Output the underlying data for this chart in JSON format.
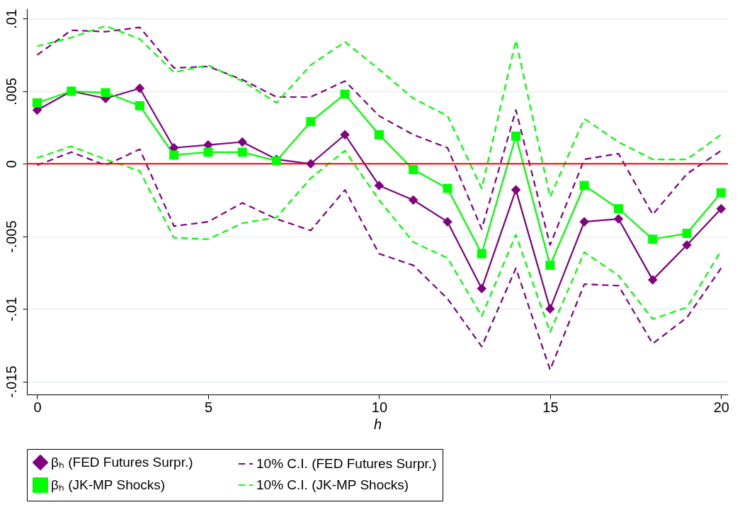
{
  "chart_data": {
    "type": "line",
    "xlabel": "h",
    "x": [
      0,
      1,
      2,
      3,
      4,
      5,
      6,
      7,
      8,
      9,
      10,
      11,
      12,
      13,
      14,
      15,
      16,
      17,
      18,
      19,
      20
    ],
    "series": [
      {
        "name": "βₕ (FED Futures Surpr.)",
        "color": "#800080",
        "marker": "diamond",
        "line_style": "solid",
        "values": [
          0.0037,
          0.005,
          0.0045,
          0.0052,
          0.0011,
          0.0013,
          0.0015,
          0.0003,
          0,
          0.002,
          -0.0015,
          -0.0025,
          -0.004,
          -0.0086,
          -0.0018,
          -0.01,
          -0.004,
          -0.0038,
          -0.008,
          -0.0056,
          -0.0031
        ]
      },
      {
        "name": "10% C.I. (FED Futures Surpr.)",
        "color": "#800080",
        "marker": "none",
        "line_style": "dashed",
        "values": [
          0.0075,
          0.0092,
          0.0091,
          0.0094,
          0.0066,
          0.0067,
          0.0058,
          0.0046,
          0.0046,
          0.0057,
          0.0033,
          0.002,
          0.0011,
          -0.0045,
          0.0037,
          -0.0056,
          0.0003,
          0.0007,
          -0.0035,
          -0.0007,
          0.0009
        ]
      },
      {
        "color": "#800080",
        "marker": "none",
        "line_style": "dashed",
        "values": [
          -0.0001,
          0.0008,
          -0.0001,
          0.001,
          -0.0043,
          -0.004,
          -0.0027,
          -0.0038,
          -0.0046,
          -0.0018,
          -0.0062,
          -0.007,
          -0.0093,
          -0.0126,
          -0.0072,
          -0.0142,
          -0.0083,
          -0.0084,
          -0.0124,
          -0.0106,
          -0.0072
        ]
      },
      {
        "name": "βₕ (JK-MP Shocks)",
        "color": "#00ff00",
        "marker": "square",
        "line_style": "solid",
        "values": [
          0.0042,
          0.005,
          0.0049,
          0.004,
          0.0006,
          0.0008,
          0.0008,
          0.0002,
          0.0029,
          0.0048,
          0.002,
          -0.0004,
          -0.0017,
          -0.0062,
          0.0019,
          -0.007,
          -0.0015,
          -0.0031,
          -0.0052,
          -0.0048,
          -0.002
        ]
      },
      {
        "name": "10% C.I. (JK-MP Shocks)",
        "color": "#00ff00",
        "marker": "none",
        "line_style": "dashed",
        "values": [
          0.0081,
          0.0087,
          0.0095,
          0.0086,
          0.0063,
          0.0068,
          0.0057,
          0.0042,
          0.0068,
          0.0084,
          0.0065,
          0.0045,
          0.0033,
          -0.0017,
          0.0085,
          -0.0023,
          0.0031,
          0.0015,
          0.0003,
          0.0003,
          0.002
        ]
      },
      {
        "color": "#00ff00",
        "marker": "none",
        "line_style": "dashed",
        "values": [
          0.0004,
          0.0012,
          0.0003,
          -0.0005,
          -0.0051,
          -0.0052,
          -0.0041,
          -0.0037,
          -0.001,
          0.0009,
          -0.0025,
          -0.0054,
          -0.0065,
          -0.0105,
          -0.0049,
          -0.0116,
          -0.0061,
          -0.0077,
          -0.0107,
          -0.0099,
          -0.006
        ]
      }
    ],
    "xlim": [
      -0.3,
      20.2
    ],
    "xticks": [
      0,
      5,
      10,
      15,
      20
    ],
    "ylim": [
      -0.0159,
      0.0107
    ],
    "yticks": [
      {
        "value": -0.015,
        "label": "-.015"
      },
      {
        "value": -0.01,
        "label": "-.01"
      },
      {
        "value": -0.005,
        "label": "-.005"
      },
      0,
      {
        "value": 0.005,
        "label": ".005"
      },
      {
        "value": 0.01,
        "label": ".01"
      }
    ],
    "ref_lines": [
      {
        "axis": "y",
        "value": 0,
        "color": "#ff0000"
      }
    ],
    "grid": "y",
    "legend": "bottom"
  }
}
